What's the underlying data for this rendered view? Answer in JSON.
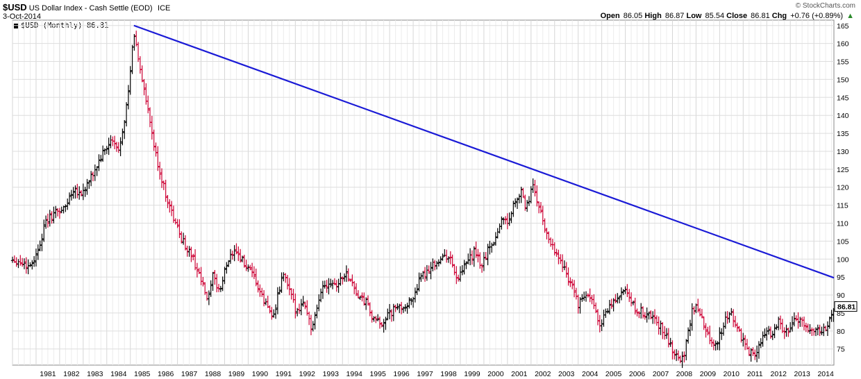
{
  "header": {
    "symbol": "$USD",
    "description": "US Dollar Index - Cash Settle (EOD)",
    "exchange": "ICE",
    "date": "3-Oct-2014",
    "brand": "© StockCharts.com"
  },
  "ohlc": {
    "open_label": "Open",
    "open": "86.05",
    "high_label": "High",
    "high": "86.87",
    "low_label": "Low",
    "low": "85.54",
    "close_label": "Close",
    "close": "86.81",
    "chg_label": "Chg",
    "chg": "+0.76 (+0.89%)"
  },
  "legend": {
    "text": "$USD (Monthly) 86.81"
  },
  "colors": {
    "up": "#000000",
    "down": "#cc0033",
    "trendline": "#1a1ad6",
    "grid": "#dddddd"
  },
  "chart_data": {
    "type": "ohlc",
    "title": "US Dollar Index - Cash Settle (EOD)",
    "frequency": "monthly",
    "last_value": 86.81,
    "last_value_label": "86.81",
    "x_range": [
      1980.0,
      2014.85
    ],
    "ylim": [
      70.5,
      166.5
    ],
    "y_ticks": [
      75,
      80,
      85,
      90,
      95,
      100,
      105,
      110,
      115,
      120,
      125,
      130,
      135,
      140,
      145,
      150,
      155,
      160,
      165
    ],
    "x_ticks": [
      "1981",
      "1982",
      "1983",
      "1984",
      "1985",
      "1986",
      "1987",
      "1988",
      "1989",
      "1990",
      "1991",
      "1992",
      "1993",
      "1994",
      "1995",
      "1996",
      "1997",
      "1998",
      "1999",
      "2000",
      "2001",
      "2002",
      "2003",
      "2004",
      "2005",
      "2006",
      "2007",
      "2008",
      "2009",
      "2010",
      "2011",
      "2012",
      "2013",
      "2014"
    ],
    "trendline": {
      "start": [
        1985.15,
        165.0
      ],
      "end": [
        2014.85,
        94.8
      ]
    },
    "key_points": [
      [
        1980.0,
        100
      ],
      [
        1980.4,
        99
      ],
      [
        1980.7,
        98
      ],
      [
        1981.0,
        101
      ],
      [
        1981.4,
        110
      ],
      [
        1981.8,
        113
      ],
      [
        1982.2,
        114
      ],
      [
        1982.6,
        120
      ],
      [
        1982.9,
        118
      ],
      [
        1983.3,
        122
      ],
      [
        1983.8,
        129
      ],
      [
        1984.2,
        133
      ],
      [
        1984.5,
        130
      ],
      [
        1984.9,
        145
      ],
      [
        1985.15,
        163
      ],
      [
        1985.5,
        150
      ],
      [
        1985.8,
        139
      ],
      [
        1986.1,
        128
      ],
      [
        1986.5,
        118
      ],
      [
        1986.9,
        110
      ],
      [
        1987.3,
        104
      ],
      [
        1987.6,
        101
      ],
      [
        1987.9,
        96
      ],
      [
        1988.1,
        92
      ],
      [
        1988.3,
        88
      ],
      [
        1988.5,
        95
      ],
      [
        1988.8,
        91
      ],
      [
        1989.1,
        99
      ],
      [
        1989.4,
        103
      ],
      [
        1989.7,
        100
      ],
      [
        1990.0,
        97
      ],
      [
        1990.3,
        94
      ],
      [
        1990.6,
        89
      ],
      [
        1990.9,
        86
      ],
      [
        1991.1,
        84
      ],
      [
        1991.3,
        91
      ],
      [
        1991.5,
        96
      ],
      [
        1991.8,
        90
      ],
      [
        1992.0,
        86
      ],
      [
        1992.4,
        88
      ],
      [
        1992.7,
        80
      ],
      [
        1992.9,
        85
      ],
      [
        1993.1,
        92
      ],
      [
        1993.5,
        94
      ],
      [
        1993.8,
        93
      ],
      [
        1994.1,
        96
      ],
      [
        1994.3,
        95
      ],
      [
        1994.7,
        89
      ],
      [
        1995.0,
        88
      ],
      [
        1995.3,
        83
      ],
      [
        1995.6,
        82
      ],
      [
        1995.9,
        84
      ],
      [
        1996.2,
        86
      ],
      [
        1996.6,
        87
      ],
      [
        1996.9,
        88
      ],
      [
        1997.2,
        93
      ],
      [
        1997.6,
        97
      ],
      [
        1997.9,
        99
      ],
      [
        1998.2,
        100
      ],
      [
        1998.5,
        101
      ],
      [
        1998.9,
        94
      ],
      [
        1999.2,
        98
      ],
      [
        1999.6,
        102
      ],
      [
        1999.9,
        98
      ],
      [
        2000.2,
        103
      ],
      [
        2000.5,
        106
      ],
      [
        2000.8,
        112
      ],
      [
        2001.0,
        110
      ],
      [
        2001.3,
        116
      ],
      [
        2001.55,
        119
      ],
      [
        2001.8,
        114
      ],
      [
        2002.0,
        119
      ],
      [
        2002.1,
        120
      ],
      [
        2002.4,
        113
      ],
      [
        2002.6,
        108
      ],
      [
        2002.9,
        104
      ],
      [
        2003.2,
        100
      ],
      [
        2003.5,
        96
      ],
      [
        2003.8,
        92
      ],
      [
        2004.0,
        87
      ],
      [
        2004.3,
        90
      ],
      [
        2004.6,
        88
      ],
      [
        2004.9,
        82
      ],
      [
        2005.1,
        84
      ],
      [
        2005.5,
        88
      ],
      [
        2005.9,
        91
      ],
      [
        2006.1,
        90
      ],
      [
        2006.4,
        86
      ],
      [
        2006.8,
        85
      ],
      [
        2007.1,
        84
      ],
      [
        2007.4,
        82
      ],
      [
        2007.7,
        79
      ],
      [
        2007.9,
        76
      ],
      [
        2008.2,
        72.5
      ],
      [
        2008.5,
        73
      ],
      [
        2008.8,
        85
      ],
      [
        2009.0,
        87
      ],
      [
        2009.2,
        84
      ],
      [
        2009.5,
        79
      ],
      [
        2009.8,
        76
      ],
      [
        2010.1,
        80
      ],
      [
        2010.4,
        86
      ],
      [
        2010.6,
        83
      ],
      [
        2010.9,
        78
      ],
      [
        2011.1,
        76
      ],
      [
        2011.3,
        74
      ],
      [
        2011.6,
        74.5
      ],
      [
        2011.9,
        79
      ],
      [
        2012.2,
        79.5
      ],
      [
        2012.5,
        83
      ],
      [
        2012.7,
        80
      ],
      [
        2013.0,
        80
      ],
      [
        2013.2,
        83
      ],
      [
        2013.5,
        83
      ],
      [
        2013.8,
        80.5
      ],
      [
        2014.1,
        80.5
      ],
      [
        2014.4,
        80
      ],
      [
        2014.6,
        82
      ],
      [
        2014.85,
        86.6
      ]
    ]
  }
}
